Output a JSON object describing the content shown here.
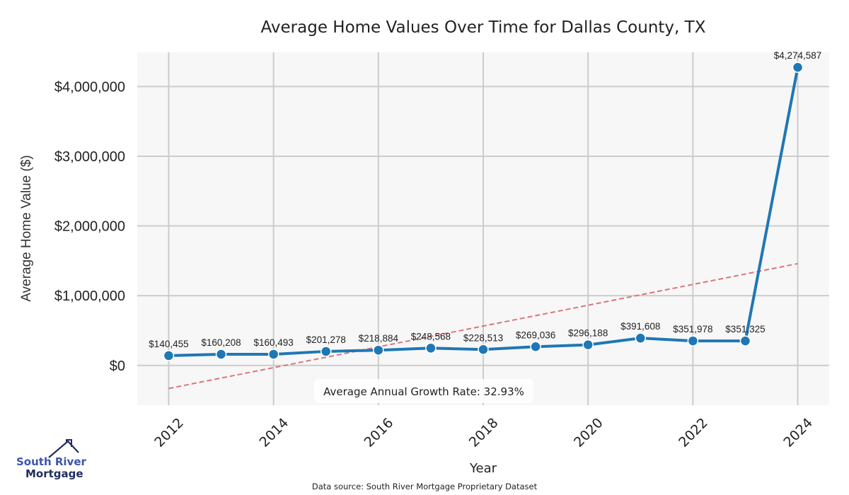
{
  "chart_data": {
    "type": "line",
    "title": "Average Home Values Over Time for Dallas County, TX",
    "xlabel": "Year",
    "ylabel": "Average Home Value ($)",
    "x": [
      2012,
      2013,
      2014,
      2015,
      2016,
      2017,
      2018,
      2019,
      2020,
      2021,
      2022,
      2023,
      2024
    ],
    "series": [
      {
        "name": "Average Home Value",
        "color": "#1f77b4",
        "values": [
          140455,
          160208,
          160493,
          201278,
          218884,
          248568,
          228513,
          269036,
          296188,
          391608,
          351978,
          351325,
          4274587
        ],
        "labels": [
          "$140,455",
          "$160,208",
          "$160,493",
          "$201,278",
          "$218,884",
          "$248,568",
          "$228,513",
          "$269,036",
          "$296,188",
          "$391,608",
          "$351,978",
          "$351,325",
          "$4,274,587"
        ]
      }
    ],
    "trendline": {
      "name": "Trend",
      "color": "#d9777c",
      "style": "dashed",
      "start": [
        2012,
        -330000
      ],
      "end": [
        2024,
        1460000
      ]
    },
    "xticks": [
      2012,
      2014,
      2016,
      2018,
      2020,
      2022,
      2024
    ],
    "xtick_labels": [
      "2012",
      "2014",
      "2016",
      "2018",
      "2020",
      "2022",
      "2024"
    ],
    "yticks": [
      0,
      1000000,
      2000000,
      3000000,
      4000000
    ],
    "ytick_labels": [
      "$0",
      "$1,000,000",
      "$2,000,000",
      "$3,000,000",
      "$4,000,000"
    ],
    "xlim": [
      2011.4,
      2024.6
    ],
    "ylim": [
      -570000,
      4490000
    ],
    "grid": true,
    "annotation": "Average Annual Growth Rate: 32.93%",
    "plot_background": "#f7f7f7",
    "grid_color": "#cccccc"
  },
  "footer": {
    "source": "Data source: South River Mortgage Proprietary Dataset"
  },
  "logo": {
    "line1": "South River",
    "line2": "Mortgage"
  }
}
